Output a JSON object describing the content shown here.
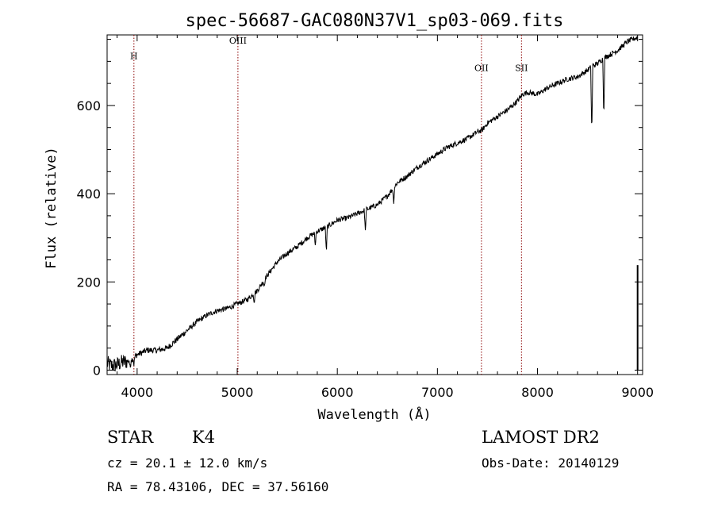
{
  "chart_data": {
    "type": "line",
    "title": "spec-56687-GAC080N37V1_sp03-069.fits",
    "xlabel": "Wavelength (Å)",
    "ylabel": "Flux (relative)",
    "xlim": [
      3700,
      9050
    ],
    "ylim": [
      -10,
      760
    ],
    "x_ticks": [
      4000,
      5000,
      6000,
      7000,
      8000,
      9000
    ],
    "y_ticks": [
      0,
      200,
      400,
      600
    ],
    "grid": false,
    "series": [
      {
        "color": "#000000",
        "x": [
          3700,
          3750,
          3800,
          3850,
          3900,
          3950,
          4000,
          4100,
          4200,
          4300,
          4400,
          4500,
          4600,
          4700,
          4800,
          4900,
          5000,
          5100,
          5200,
          5300,
          5400,
          5500,
          5600,
          5700,
          5800,
          5900,
          6000,
          6100,
          6200,
          6300,
          6400,
          6500,
          6600,
          6700,
          6800,
          6900,
          7000,
          7100,
          7200,
          7300,
          7400,
          7450,
          7500,
          7600,
          7700,
          7800,
          7850,
          7900,
          8000,
          8100,
          8200,
          8300,
          8400,
          8500,
          8550,
          8600,
          8650,
          8700,
          8800,
          8900,
          9000
        ],
        "y": [
          15,
          10,
          12,
          18,
          20,
          25,
          35,
          45,
          45,
          50,
          70,
          90,
          110,
          125,
          135,
          140,
          150,
          160,
          180,
          215,
          245,
          265,
          280,
          300,
          315,
          325,
          340,
          345,
          355,
          365,
          375,
          395,
          425,
          440,
          460,
          475,
          490,
          505,
          515,
          525,
          540,
          545,
          560,
          575,
          590,
          610,
          625,
          630,
          625,
          640,
          650,
          660,
          665,
          680,
          690,
          695,
          705,
          712,
          725,
          745,
          755
        ]
      }
    ],
    "absorption_lines": [
      {
        "x": 3930,
        "depth": 20
      },
      {
        "x": 3968,
        "depth": 15
      },
      {
        "x": 5170,
        "depth": 20
      },
      {
        "x": 5270,
        "depth": 15
      },
      {
        "x": 5780,
        "depth": 30
      },
      {
        "x": 5890,
        "depth": 60
      },
      {
        "x": 6280,
        "depth": 50
      },
      {
        "x": 6563,
        "depth": 35
      },
      {
        "x": 8542,
        "depth": 160
      },
      {
        "x": 8662,
        "depth": 135
      }
    ],
    "spike": {
      "x": 9000,
      "y": 238
    },
    "line_markers": [
      {
        "label": "H",
        "x": 3968,
        "label_y": 705
      },
      {
        "label": "OIII",
        "x": 5007,
        "label_y": 740
      },
      {
        "label": "OII",
        "x": 7440,
        "label_y": 678
      },
      {
        "label": "SII",
        "x": 7840,
        "label_y": 678
      }
    ],
    "marker_color": "#8b0000"
  },
  "info": {
    "class": "STAR",
    "subclass": "K4",
    "survey": "LAMOST DR2",
    "cz": "cz = 20.1 ± 12.0 km/s",
    "obs_date": "Obs-Date: 20140129",
    "radec": "RA =  78.43106, DEC =  37.56160"
  }
}
